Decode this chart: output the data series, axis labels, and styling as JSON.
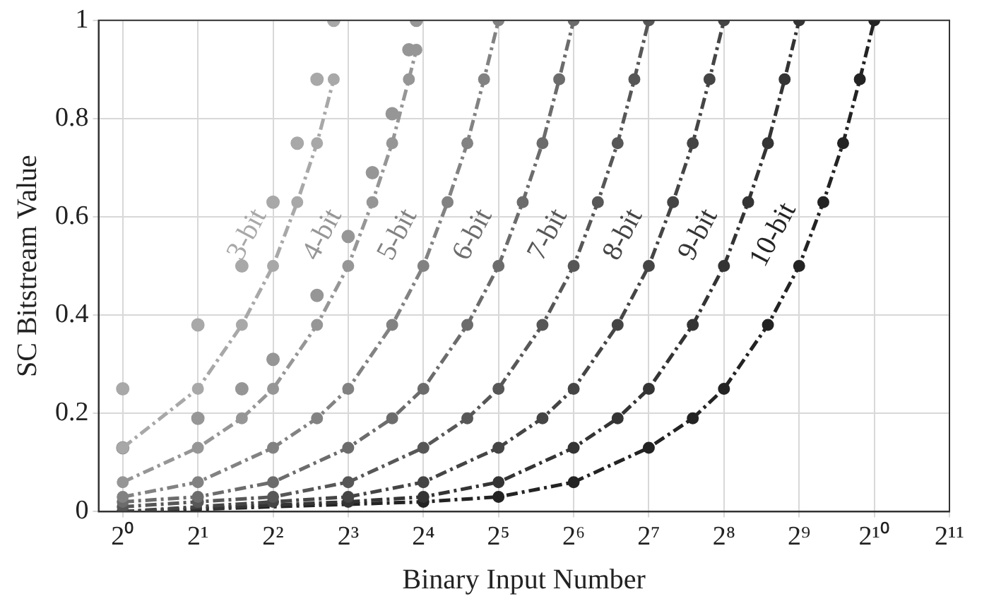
{
  "chart_data": {
    "type": "line",
    "xlabel": "Binary Input Number",
    "ylabel": "SC Bitstream Value",
    "log": "x",
    "xlim": [
      0.8,
      2048
    ],
    "ylim": [
      0,
      1
    ],
    "xticks": [
      {
        "value": 1,
        "label": "2⁰"
      },
      {
        "value": 2,
        "label": "2¹"
      },
      {
        "value": 4,
        "label": "2²"
      },
      {
        "value": 8,
        "label": "2³"
      },
      {
        "value": 16,
        "label": "2⁴"
      },
      {
        "value": 32,
        "label": "2⁵"
      },
      {
        "value": 64,
        "label": "2⁶"
      },
      {
        "value": 128,
        "label": "2⁷"
      },
      {
        "value": 256,
        "label": "2⁸"
      },
      {
        "value": 512,
        "label": "2⁹"
      },
      {
        "value": 1024,
        "label": "2¹⁰"
      },
      {
        "value": 2048,
        "label": "2¹¹"
      }
    ],
    "yticks": [
      0,
      0.2,
      0.4,
      0.6,
      0.8,
      1
    ],
    "grid": true,
    "legend": false,
    "marker": "circle",
    "line_style": "dashed",
    "series": [
      {
        "name": "3-bit",
        "color": "#a8a8a8",
        "x": [
          1,
          2,
          3,
          4,
          5,
          6,
          7
        ],
        "values": [
          0.13,
          0.25,
          0.38,
          0.5,
          0.63,
          0.75,
          0.88
        ]
      },
      {
        "type": "scatter",
        "color": "#a8a8a8",
        "x": [
          1,
          2,
          3,
          4,
          5,
          6,
          7
        ],
        "values": [
          0.25,
          0.38,
          0.5,
          0.63,
          0.75,
          0.88,
          1
        ]
      },
      {
        "name": "4-bit",
        "color": "#969696",
        "x": [
          1,
          2,
          3,
          4,
          6,
          8,
          10,
          12,
          14,
          15
        ],
        "values": [
          0.06,
          0.13,
          0.19,
          0.25,
          0.38,
          0.5,
          0.63,
          0.75,
          0.88,
          0.94
        ]
      },
      {
        "type": "scatter",
        "color": "#969696",
        "x": [
          1,
          2,
          3,
          4,
          6,
          8,
          10,
          12,
          14,
          15
        ],
        "values": [
          0.13,
          0.19,
          0.25,
          0.31,
          0.44,
          0.56,
          0.69,
          0.81,
          0.94,
          1
        ]
      },
      {
        "name": "5-bit",
        "color": "#828282",
        "x": [
          1,
          2,
          4,
          6,
          8,
          12,
          16,
          20,
          24,
          28,
          32
        ],
        "values": [
          0.03,
          0.06,
          0.13,
          0.19,
          0.25,
          0.38,
          0.5,
          0.63,
          0.75,
          0.88,
          1
        ]
      },
      {
        "name": "6-bit",
        "color": "#6c6c6c",
        "x": [
          1,
          2,
          4,
          8,
          12,
          16,
          24,
          32,
          40,
          48,
          56,
          64
        ],
        "values": [
          0.02,
          0.03,
          0.06,
          0.13,
          0.19,
          0.25,
          0.38,
          0.5,
          0.63,
          0.75,
          0.88,
          1
        ]
      },
      {
        "name": "7-bit",
        "color": "#575757",
        "x": [
          1,
          2,
          4,
          8,
          16,
          24,
          32,
          48,
          64,
          80,
          96,
          112,
          128
        ],
        "values": [
          0.01,
          0.02,
          0.03,
          0.06,
          0.13,
          0.19,
          0.25,
          0.38,
          0.5,
          0.63,
          0.75,
          0.88,
          1
        ]
      },
      {
        "name": "8-bit",
        "color": "#454545",
        "x": [
          1,
          4,
          8,
          16,
          32,
          48,
          64,
          96,
          128,
          160,
          192,
          224,
          256
        ],
        "values": [
          0,
          0.02,
          0.03,
          0.06,
          0.13,
          0.19,
          0.25,
          0.38,
          0.5,
          0.63,
          0.75,
          0.88,
          1
        ]
      },
      {
        "name": "9-bit",
        "color": "#343434",
        "x": [
          1,
          8,
          16,
          32,
          64,
          96,
          128,
          192,
          256,
          320,
          384,
          448,
          512
        ],
        "values": [
          0,
          0.02,
          0.03,
          0.06,
          0.13,
          0.19,
          0.25,
          0.38,
          0.5,
          0.63,
          0.75,
          0.88,
          1
        ]
      },
      {
        "name": "10-bit",
        "color": "#232323",
        "x": [
          1,
          16,
          32,
          64,
          128,
          192,
          256,
          384,
          512,
          640,
          768,
          896,
          1024
        ],
        "values": [
          0,
          0.02,
          0.03,
          0.06,
          0.13,
          0.19,
          0.25,
          0.38,
          0.5,
          0.63,
          0.75,
          0.88,
          1
        ]
      }
    ]
  }
}
